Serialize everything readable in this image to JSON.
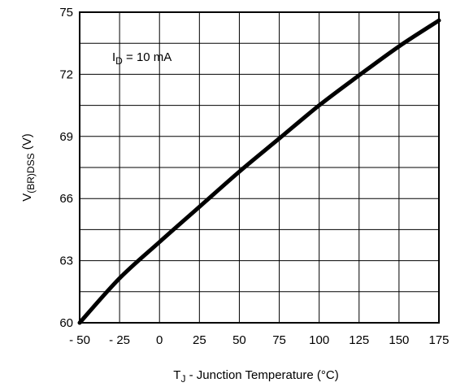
{
  "chart_data": {
    "type": "line",
    "xlabel": {
      "main": "T",
      "sub": "J",
      "rest": "  - Junction Temperature (°C)"
    },
    "ylabel": {
      "main": "V",
      "sub": "(BR)DSS",
      "rest": " (V)"
    },
    "annotation": {
      "main": "I",
      "sub": "D",
      "rest": " = 10 mA"
    },
    "xlim": [
      -50,
      175
    ],
    "ylim": [
      60,
      75
    ],
    "x_ticks": [
      -50,
      -25,
      0,
      25,
      50,
      75,
      100,
      125,
      150,
      175
    ],
    "x_tick_labels": [
      "- 50",
      "- 25",
      "0",
      "25",
      "50",
      "75",
      "100",
      "125",
      "150",
      "175"
    ],
    "y_ticks": [
      60,
      63,
      66,
      69,
      72,
      75
    ],
    "y_tick_labels": [
      "60",
      "63",
      "66",
      "69",
      "72",
      "75"
    ],
    "grid": true,
    "series": [
      {
        "x": [
          -50,
          -25,
          0,
          25,
          50,
          75,
          100,
          125,
          150,
          175
        ],
        "y": [
          60.0,
          62.15,
          63.9,
          65.6,
          67.3,
          68.9,
          70.5,
          71.95,
          73.35,
          74.6
        ]
      }
    ],
    "colors": {
      "line": "#000000",
      "grid": "#000000",
      "background": "#ffffff"
    }
  }
}
